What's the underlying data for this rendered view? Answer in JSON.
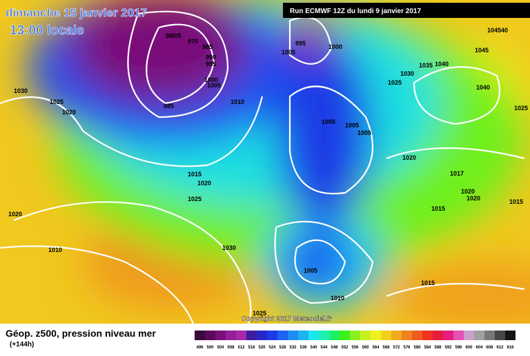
{
  "header": {
    "date": "dimanche 15 janvier 2017",
    "time": "13:00 locale",
    "run": "Run ECMWF 12Z du lundi 9 janvier 2017",
    "copyright": "Copyright 2017 Meteociel.fr"
  },
  "footer": {
    "title": "Géop. z500, pression niveau mer",
    "lead": "(+144h)"
  },
  "isobar_labels": [
    "1030",
    "1025",
    "1020",
    "980/5",
    "970",
    "985",
    "990",
    "995",
    "1000",
    "1005",
    "985",
    "1010",
    "995",
    "1005",
    "1000",
    "1005",
    "1005",
    "1005",
    "1030",
    "1035",
    "1040",
    "1025",
    "104540",
    "1045",
    "1040",
    "1025",
    "1020",
    "1015",
    "1020",
    "1025",
    "1020",
    "1010",
    "1030",
    "1005",
    "1010",
    "1015",
    "1025",
    "1017",
    "1020",
    "1020",
    "1015",
    "1015"
  ],
  "legend": {
    "values": [
      496,
      500,
      504,
      508,
      512,
      516,
      520,
      524,
      528,
      532,
      536,
      540,
      544,
      548,
      552,
      556,
      560,
      564,
      568,
      572,
      576,
      580,
      584,
      588,
      592,
      596,
      600,
      604,
      608,
      612,
      616
    ],
    "colors": [
      "#3a0a3a",
      "#5a0a5a",
      "#7a107a",
      "#961e96",
      "#a82aa8",
      "#3c1ea0",
      "#2828c8",
      "#1e3ce6",
      "#1e64f0",
      "#1e8cf0",
      "#1eb4f0",
      "#1ee6f0",
      "#1ef0b4",
      "#1ef064",
      "#3cf01e",
      "#8cf01e",
      "#c8f01e",
      "#f0f01e",
      "#f0d21e",
      "#f0aa1e",
      "#f0821e",
      "#f05a1e",
      "#f0321e",
      "#e61e3c",
      "#e61e82",
      "#e650b4",
      "#c8a0c8",
      "#a0a0a0",
      "#787878",
      "#464646",
      "#141414"
    ]
  }
}
